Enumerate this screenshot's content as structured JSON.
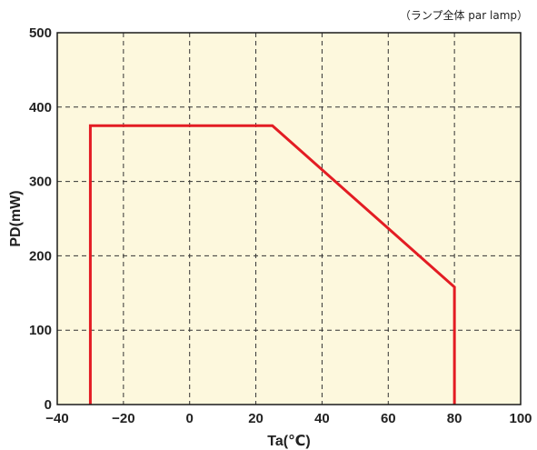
{
  "chart_data": {
    "type": "line",
    "title": "",
    "note": "（ランプ全体  par lamp）",
    "xlabel": "Ta(℃)",
    "ylabel": "PD(mW)",
    "xlim": [
      -40,
      100
    ],
    "ylim": [
      0,
      500
    ],
    "xticks": [
      -40,
      -20,
      0,
      20,
      40,
      60,
      80,
      100
    ],
    "yticks": [
      0,
      100,
      200,
      300,
      400,
      500
    ],
    "grid": true,
    "series": [
      {
        "x": [
          -30,
          -30,
          25,
          80,
          80
        ],
        "y": [
          0,
          375,
          375,
          158,
          0
        ],
        "color": "#e31c23"
      }
    ],
    "colors": {
      "plot_background": "#fdf8dd",
      "grid": "#333333",
      "frame": "#1a1a1a"
    }
  }
}
